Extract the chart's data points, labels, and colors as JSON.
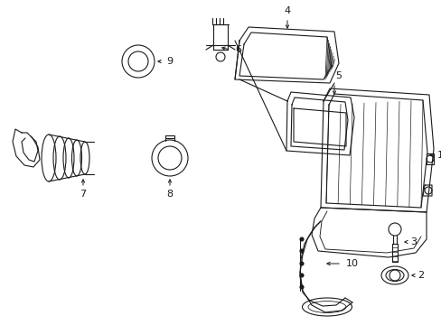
{
  "background_color": "#ffffff",
  "line_color": "#1a1a1a",
  "line_width": 0.8,
  "label_fontsize": 8,
  "figsize": [
    4.89,
    3.6
  ],
  "dpi": 100
}
